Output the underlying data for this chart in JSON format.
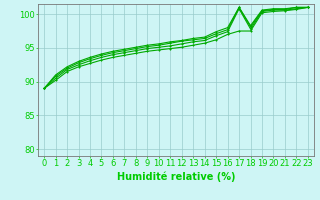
{
  "background_color": "#cef5f5",
  "grid_color": "#99cccc",
  "line_color": "#00aa00",
  "marker_color": "#00aa00",
  "xlabel": "Humidité relative (%)",
  "xlabel_color": "#00cc00",
  "tick_color": "#00cc00",
  "xlim": [
    -0.5,
    23.5
  ],
  "ylim": [
    79,
    101.5
  ],
  "yticks": [
    80,
    85,
    90,
    95,
    100
  ],
  "xticks": [
    0,
    1,
    2,
    3,
    4,
    5,
    6,
    7,
    8,
    9,
    10,
    11,
    12,
    13,
    14,
    15,
    16,
    17,
    18,
    19,
    20,
    21,
    22,
    23
  ],
  "series": [
    [
      89.0,
      90.2,
      91.5,
      92.2,
      92.7,
      93.2,
      93.6,
      93.9,
      94.2,
      94.5,
      94.7,
      94.9,
      95.1,
      95.4,
      95.7,
      96.2,
      97.0,
      97.5,
      97.5,
      100.2,
      100.4,
      100.5,
      100.7,
      101.0
    ],
    [
      89.0,
      90.5,
      91.8,
      92.5,
      93.1,
      93.6,
      94.0,
      94.3,
      94.6,
      94.9,
      95.1,
      95.3,
      95.6,
      95.9,
      96.1,
      96.8,
      97.4,
      100.8,
      97.8,
      100.4,
      100.6,
      100.6,
      100.8,
      101.0
    ],
    [
      89.0,
      90.8,
      92.0,
      92.8,
      93.4,
      93.9,
      94.3,
      94.6,
      94.9,
      95.2,
      95.4,
      95.7,
      96.0,
      96.2,
      96.4,
      97.1,
      97.7,
      101.0,
      98.1,
      100.5,
      100.7,
      100.7,
      101.0,
      101.0
    ],
    [
      89.0,
      91.0,
      92.2,
      93.0,
      93.6,
      94.1,
      94.5,
      94.8,
      95.1,
      95.4,
      95.6,
      95.9,
      96.1,
      96.4,
      96.6,
      97.4,
      98.0,
      101.0,
      98.3,
      100.6,
      100.8,
      100.8,
      101.0,
      101.0
    ]
  ],
  "xlabel_fontsize": 7,
  "tick_fontsize": 6,
  "spine_color": "#777777",
  "linewidth": 0.8,
  "markersize": 2.0
}
